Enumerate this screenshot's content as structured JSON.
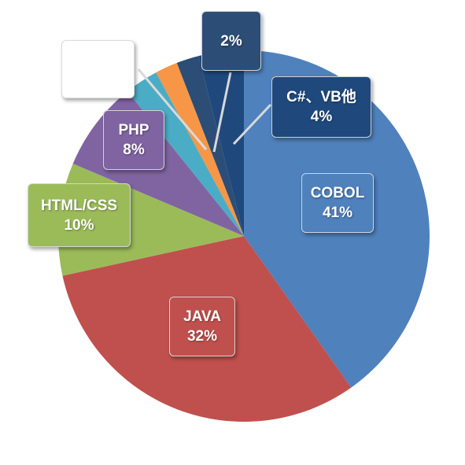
{
  "chart_data": {
    "type": "pie",
    "title": "",
    "slices": [
      {
        "label": "COBOL",
        "value": 41,
        "value_label": "41%",
        "color": "#4f81bd"
      },
      {
        "label": "JAVA",
        "value": 32,
        "value_label": "32%",
        "color": "#c0504d"
      },
      {
        "label": "HTML/CSS",
        "value": 10,
        "value_label": "10%",
        "color": "#9bbb59"
      },
      {
        "label": "PHP",
        "value": 8,
        "value_label": "8%",
        "color": "#8064a2"
      },
      {
        "label": "",
        "value": 3,
        "value_label": "",
        "color": "#4bacc6"
      },
      {
        "label": "",
        "value": 2,
        "value_label": "",
        "color": "#f79646"
      },
      {
        "label": "",
        "value": 2,
        "value_label": "2%",
        "color": "#2c4d75"
      },
      {
        "label": "C#、VB他",
        "value": 4,
        "value_label": "4%",
        "color": "#1f497d"
      }
    ],
    "legend": "none"
  }
}
